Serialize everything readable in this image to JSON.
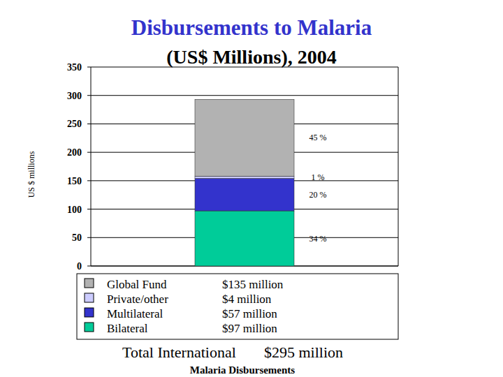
{
  "chart_data": {
    "type": "bar",
    "title": "Disbursements to Malaria",
    "subtitle": "(US$ Millions), 2004",
    "y_label": "US $ millions",
    "categories": [
      null
    ],
    "stacked": true,
    "grid": true,
    "ylim": [
      0,
      350
    ],
    "yticks": [
      0,
      50,
      100,
      150,
      200,
      250,
      300,
      350
    ],
    "series": [
      {
        "name": "Bilateral",
        "color": "#00cc99",
        "values": [
          97
        ],
        "value_labels": [
          "$97 million"
        ],
        "share_labels": [
          "34 %"
        ]
      },
      {
        "name": "Multilateral",
        "color": "#3333cc",
        "values": [
          57
        ],
        "value_labels": [
          "$57 million"
        ],
        "share_labels": [
          "20 %"
        ]
      },
      {
        "name": "Private/other",
        "color": "#ccccff",
        "values": [
          4
        ],
        "value_labels": [
          "$4 million"
        ],
        "share_labels": [
          "1 %"
        ]
      },
      {
        "name": "Global Fund",
        "color": "#b2b2b2",
        "values": [
          135
        ],
        "value_labels": [
          "$135 million"
        ],
        "share_labels": [
          "45 %"
        ]
      }
    ],
    "annotations": [
      "Total International",
      "$295 million",
      "Malaria Disbursements"
    ]
  }
}
